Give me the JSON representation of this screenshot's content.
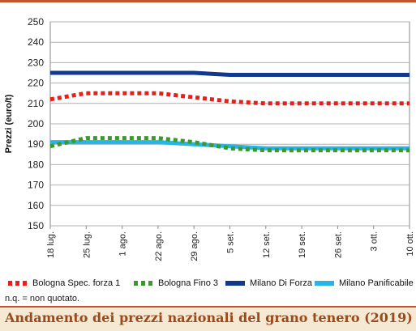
{
  "chart_data": {
    "type": "line",
    "title": "Andamento dei prezzi nazionali del grano tenero (2019)",
    "ylabel": "Prezzi (euro/t)",
    "xlabel": "",
    "ylim": [
      150,
      250
    ],
    "yticks": [
      150,
      160,
      170,
      180,
      190,
      200,
      210,
      220,
      230,
      240,
      250
    ],
    "categories": [
      "18 lug.",
      "25 lug.",
      "1 ago.",
      "22 ago.",
      "29 ago.",
      "5 set.",
      "12 set.",
      "19 set.",
      "26 set.",
      "3 ott.",
      "10 ott."
    ],
    "grid": "horizontal",
    "legend_position": "bottom",
    "series": [
      {
        "name": "Bologna Spec. forza 1",
        "color": "#e8201c",
        "style": "dotted",
        "values": [
          212,
          215,
          215,
          215,
          213,
          211,
          210,
          210,
          210,
          210,
          210
        ]
      },
      {
        "name": "Bologna Fino 3",
        "color": "#3a9a2c",
        "style": "dotted",
        "values": [
          189,
          193,
          193,
          193,
          191,
          188,
          187,
          187,
          187,
          187,
          187
        ]
      },
      {
        "name": "Milano Di Forza",
        "color": "#123a8c",
        "style": "solid",
        "values": [
          225,
          225,
          225,
          225,
          225,
          224,
          224,
          224,
          224,
          224,
          224
        ]
      },
      {
        "name": "Milano Panificabile",
        "color": "#27b4e6",
        "style": "solid",
        "values": [
          191,
          191,
          191,
          191,
          190,
          189,
          188,
          188,
          188,
          188,
          188
        ]
      }
    ]
  },
  "note": "n.q. = non quotato.",
  "title_bar": "Andamento dei prezzi nazionali del grano tenero (2019)"
}
